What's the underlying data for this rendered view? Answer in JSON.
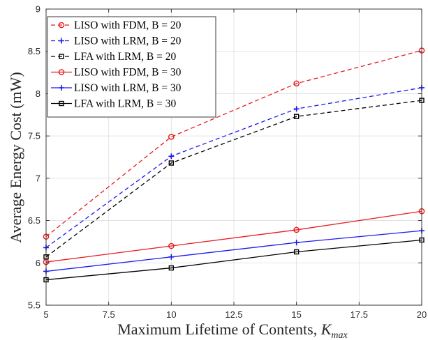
{
  "chart_data": {
    "type": "line",
    "x": [
      5,
      10,
      15,
      20
    ],
    "xlabel": "Maximum Lifetime of Contents,",
    "xlabel_symbol": "K",
    "xlabel_subscript": "max",
    "ylabel": "Average Energy Cost (mW)",
    "xlim": [
      5,
      20
    ],
    "ylim": [
      5.5,
      9
    ],
    "xticks": [
      "5",
      "7.5",
      "10",
      "12.5",
      "15",
      "17.5",
      "20"
    ],
    "yticks": [
      "5.5",
      "6",
      "6.5",
      "7",
      "7.5",
      "8",
      "8.5",
      "9"
    ],
    "grid": true,
    "legend_position": "top-left",
    "series": [
      {
        "name": "LISO with FDM, B = 20",
        "values": [
          6.31,
          7.49,
          8.12,
          8.51
        ],
        "color": "#e8191c",
        "dash": "dashed",
        "marker": "circle"
      },
      {
        "name": "LISO with LRM, B = 20",
        "values": [
          6.18,
          7.26,
          7.82,
          8.07
        ],
        "color": "#1a1aee",
        "dash": "dashed",
        "marker": "plus"
      },
      {
        "name": "LFA with LRM, B = 20",
        "values": [
          6.07,
          7.18,
          7.73,
          7.92
        ],
        "color": "#000000",
        "dash": "dashed",
        "marker": "square"
      },
      {
        "name": "LISO with FDM, B = 30",
        "values": [
          6.01,
          6.2,
          6.39,
          6.61
        ],
        "color": "#e8191c",
        "dash": "solid",
        "marker": "circle"
      },
      {
        "name": "LISO with LRM, B = 30",
        "values": [
          5.9,
          6.07,
          6.24,
          6.38
        ],
        "color": "#1a1aee",
        "dash": "solid",
        "marker": "plus"
      },
      {
        "name": "LFA with LRM, B = 30",
        "values": [
          5.8,
          5.94,
          6.13,
          6.27
        ],
        "color": "#000000",
        "dash": "solid",
        "marker": "square"
      }
    ]
  }
}
